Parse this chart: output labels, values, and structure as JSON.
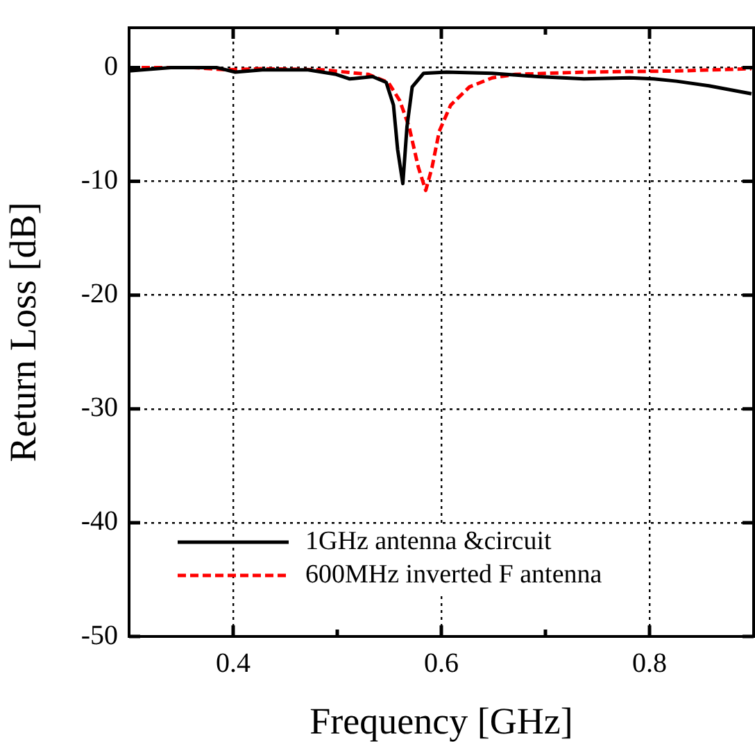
{
  "chart_data": {
    "type": "line",
    "xlabel": "Frequency [GHz]",
    "ylabel": "Return Loss [dB]",
    "xlim": [
      0.3,
      0.9
    ],
    "xticks": [
      0.4,
      {
        "value": 0.5,
        "label": null
      },
      0.6,
      {
        "value": 0.7,
        "label": null
      },
      0.8
    ],
    "ylim": [
      -50,
      3.5
    ],
    "yticks": [
      -50,
      -40,
      -30,
      -20,
      -10,
      0
    ],
    "grid": true,
    "legend": "bottom left",
    "marker": "none",
    "series": [
      {
        "name": "1GHz antenna &circuit",
        "color": "#000000",
        "line_style": "solid",
        "x": [
          0.3,
          0.34,
          0.384,
          0.402,
          0.428,
          0.472,
          0.499,
          0.512,
          0.534,
          0.547,
          0.554,
          0.558,
          0.563,
          0.567,
          0.572,
          0.583,
          0.605,
          0.649,
          0.693,
          0.737,
          0.781,
          0.804,
          0.826,
          0.857,
          0.898
        ],
        "values": [
          -0.3,
          0,
          0,
          -0.4,
          -0.2,
          -0.2,
          -0.6,
          -1,
          -0.8,
          -1.3,
          -3.3,
          -7.2,
          -10.2,
          -5.2,
          -1.7,
          -0.5,
          -0.4,
          -0.5,
          -0.8,
          -1,
          -0.9,
          -1,
          -1.2,
          -1.6,
          -2.3
        ]
      },
      {
        "name": "600MHz inverted F antenna",
        "color": "#ff0000",
        "line_style": "dashed",
        "x": [
          0.3,
          0.362,
          0.393,
          0.428,
          0.486,
          0.53,
          0.549,
          0.56,
          0.569,
          0.578,
          0.585,
          0.591,
          0.598,
          0.609,
          0.627,
          0.649,
          0.671,
          0.737,
          0.826,
          0.898
        ],
        "values": [
          0,
          0,
          -0.2,
          -0.1,
          -0.2,
          -0.6,
          -1.3,
          -2.9,
          -5.2,
          -8.8,
          -10.8,
          -8.8,
          -5.6,
          -3.3,
          -1.7,
          -0.9,
          -0.6,
          -0.4,
          -0.3,
          -0.1
        ]
      }
    ]
  }
}
